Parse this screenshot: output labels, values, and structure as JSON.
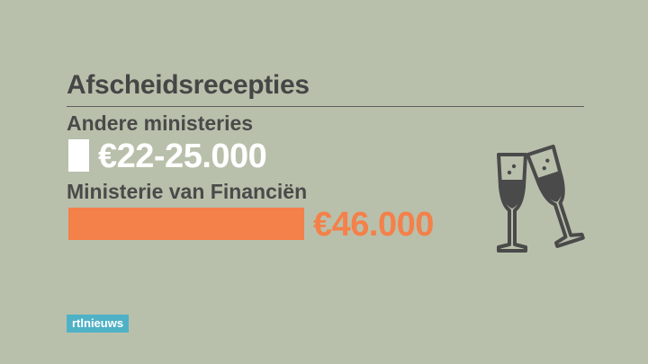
{
  "chart_data": {
    "type": "bar",
    "title": "Afscheidsrecepties",
    "categories": [
      "Andere ministeries",
      "Ministerie van Financiën"
    ],
    "values": [
      25000,
      46000
    ],
    "value_labels": [
      "€22-25.000",
      "€46.000"
    ],
    "colors": [
      "#ffffff",
      "#f4804a"
    ],
    "xlim": [
      0,
      46000
    ],
    "orientation": "horizontal",
    "grid": false
  },
  "logo": {
    "text": "rtlnieuws",
    "color": "#4fb1c6"
  },
  "icon": "champagne-glasses-icon",
  "colors": {
    "background": "#b8c0ab",
    "text": "#464646",
    "icon": "#4a4a4a"
  }
}
